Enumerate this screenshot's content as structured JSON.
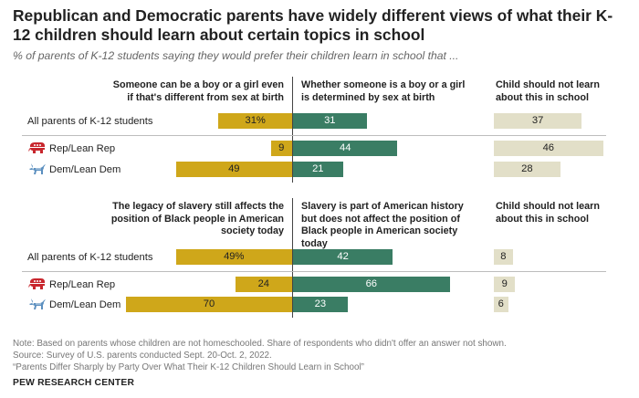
{
  "title": "Republican and Democratic parents have widely different views of what their K-12 children should learn about certain topics in school",
  "subtitle": "% of parents of K-12 students saying they would prefer their children learn in school that ...",
  "colors": {
    "left": "#cfa71a",
    "right": "#3a7d64",
    "neither": "#e2dfc8"
  },
  "chart_data": [
    {
      "type": "bar",
      "columns": [
        "Someone can be a boy or a girl even if that's different from sex at birth",
        "Whether someone is a boy or a girl is determined by sex at birth",
        "Child should not learn about this in school"
      ],
      "rows": [
        {
          "label": "All parents of K-12 students",
          "icon": "",
          "left": 31,
          "left_label": "31%",
          "right": 31,
          "right_label": "31",
          "neither": 37,
          "neither_label": "37"
        },
        {
          "label": "Rep/Lean Rep",
          "icon": "republican-elephant-icon",
          "left": 9,
          "left_label": "9",
          "right": 44,
          "right_label": "44",
          "neither": 46,
          "neither_label": "46"
        },
        {
          "label": "Dem/Lean Dem",
          "icon": "democratic-donkey-icon",
          "left": 49,
          "left_label": "49",
          "right": 21,
          "right_label": "21",
          "neither": 28,
          "neither_label": "28"
        }
      ]
    },
    {
      "type": "bar",
      "columns": [
        "The legacy of slavery still affects the position of Black people in American society today",
        "Slavery is part of American history but does not affect the position of Black people in American society today",
        "Child should not learn about this in school"
      ],
      "rows": [
        {
          "label": "All parents of K-12 students",
          "icon": "",
          "left": 49,
          "left_label": "49%",
          "right": 42,
          "right_label": "42",
          "neither": 8,
          "neither_label": "8"
        },
        {
          "label": "Rep/Lean Rep",
          "icon": "republican-elephant-icon",
          "left": 24,
          "left_label": "24",
          "right": 66,
          "right_label": "66",
          "neither": 9,
          "neither_label": "9"
        },
        {
          "label": "Dem/Lean Dem",
          "icon": "democratic-donkey-icon",
          "left": 70,
          "left_label": "70",
          "right": 23,
          "right_label": "23",
          "neither": 6,
          "neither_label": "6"
        }
      ]
    }
  ],
  "notes": {
    "note": "Note: Based on parents whose children are not homeschooled. Share of respondents who didn't offer an answer not shown.",
    "source": "Source: Survey of U.S. parents conducted Sept. 20-Oct. 2, 2022.",
    "report": "“Parents Differ Sharply by Party Over What Their K-12 Children Should Learn in School”",
    "brand": "PEW RESEARCH CENTER"
  }
}
